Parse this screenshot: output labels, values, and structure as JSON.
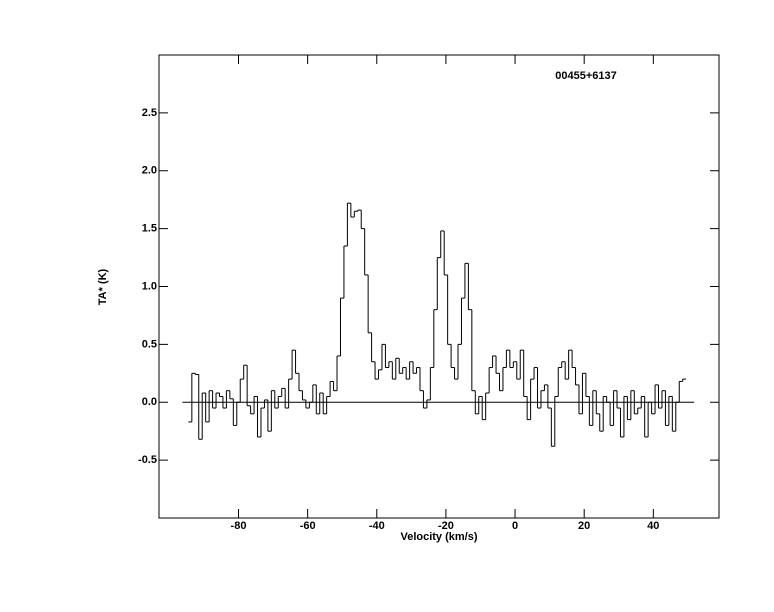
{
  "chart_data": {
    "type": "step",
    "title": "00455+6137",
    "x_label": "Velocity (km/s)",
    "y_label": "TA* (K)",
    "color": "#000000",
    "xlim": [
      -103,
      59
    ],
    "ylim": [
      -1,
      3
    ],
    "xticks": [
      -80,
      -60,
      -40,
      -20,
      0,
      20,
      40
    ],
    "yticks": [
      -0.5,
      {
        "value": 0,
        "label": "0.0"
      },
      0.5,
      {
        "value": 1,
        "label": "1.0"
      },
      1.5,
      {
        "value": 2,
        "label": "2.0"
      },
      2.5
    ],
    "x": [
      -94,
      -93,
      -92,
      -91,
      -90,
      -89,
      -88,
      -87,
      -86,
      -85,
      -84,
      -83,
      -82,
      -81,
      -80,
      -79,
      -78,
      -77,
      -76,
      -75,
      -74,
      -73,
      -72,
      -71,
      -70,
      -69,
      -68,
      -67,
      -66,
      -65,
      -64,
      -63,
      -62,
      -61,
      -60,
      -59,
      -58,
      -57,
      -56,
      -55,
      -54,
      -53,
      -52,
      -51,
      -50,
      -49,
      -48,
      -47,
      -46,
      -45,
      -44,
      -43,
      -42,
      -41,
      -40,
      -39,
      -38,
      -37,
      -36,
      -35,
      -34,
      -33,
      -32,
      -31,
      -30,
      -29,
      -28,
      -27,
      -26,
      -25,
      -24,
      -23,
      -22,
      -21,
      -20,
      -19,
      -18,
      -17,
      -16,
      -15,
      -14,
      -13,
      -12,
      -11,
      -10,
      -9,
      -8,
      -7,
      -6,
      -5,
      -4,
      -3,
      -2,
      -1,
      0,
      1,
      2,
      3,
      4,
      5,
      6,
      7,
      8,
      9,
      10,
      11,
      12,
      13,
      14,
      15,
      16,
      17,
      18,
      19,
      20,
      21,
      22,
      23,
      24,
      25,
      26,
      27,
      28,
      29,
      30,
      31,
      32,
      33,
      34,
      35,
      36,
      37,
      38,
      39,
      40,
      41,
      42,
      43,
      44,
      45,
      46,
      47,
      48,
      49
    ],
    "values": [
      -0.17,
      0.25,
      0.24,
      -0.32,
      0.08,
      -0.17,
      0.1,
      -0.05,
      0.08,
      0.05,
      -0.05,
      0.1,
      0.03,
      -0.2,
      0.0,
      0.2,
      0.32,
      -0.03,
      -0.1,
      0.05,
      -0.3,
      -0.05,
      0.02,
      -0.25,
      0.1,
      -0.05,
      0.05,
      0.12,
      -0.05,
      0.2,
      0.45,
      0.25,
      0.1,
      0.02,
      -0.05,
      0.0,
      0.15,
      -0.1,
      0.08,
      -0.1,
      0.05,
      0.18,
      0.1,
      0.4,
      0.9,
      1.35,
      1.72,
      1.6,
      1.65,
      1.66,
      1.5,
      1.1,
      0.6,
      0.35,
      0.2,
      0.28,
      0.5,
      0.3,
      0.35,
      0.2,
      0.38,
      0.25,
      0.3,
      0.2,
      0.35,
      0.25,
      0.3,
      0.1,
      -0.05,
      0.02,
      0.3,
      0.8,
      1.25,
      1.48,
      1.1,
      0.5,
      0.3,
      0.2,
      0.5,
      0.9,
      1.2,
      0.8,
      0.1,
      -0.1,
      0.05,
      -0.15,
      0.08,
      0.3,
      0.4,
      0.25,
      0.1,
      0.3,
      0.45,
      0.3,
      0.35,
      0.2,
      0.45,
      0.05,
      -0.15,
      0.2,
      0.3,
      -0.05,
      0.1,
      0.15,
      -0.05,
      -0.38,
      0.05,
      0.3,
      0.35,
      0.2,
      0.45,
      0.3,
      0.15,
      -0.1,
      0.25,
      0.05,
      -0.2,
      0.1,
      -0.1,
      -0.25,
      0.05,
      0.0,
      -0.2,
      0.1,
      -0.05,
      -0.3,
      0.05,
      -0.15,
      0.1,
      -0.1,
      -0.05,
      0.05,
      -0.3,
      0.0,
      -0.1,
      0.15,
      -0.05,
      0.1,
      -0.2,
      0.05,
      -0.25,
      0.0,
      0.18,
      0.2
    ]
  }
}
